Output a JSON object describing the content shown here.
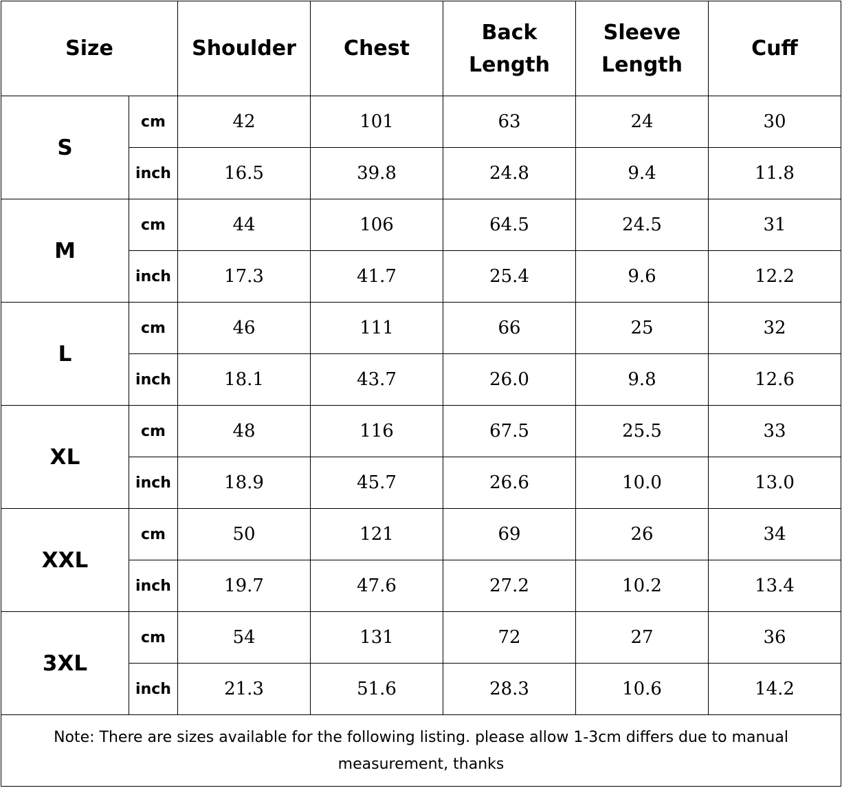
{
  "headers": {
    "size": "Size",
    "shoulder": "Shoulder",
    "chest": "Chest",
    "back_length_1": "Back",
    "back_length_2": "Length",
    "sleeve_length_1": "Sleeve",
    "sleeve_length_2": "Length",
    "cuff": "Cuff"
  },
  "rows": [
    {
      "size": "S",
      "cm_label": "cm",
      "inch_label": "inch",
      "cm": [
        "42",
        "101",
        "63",
        "24",
        "30"
      ],
      "inch": [
        "16.5",
        "39.8",
        "24.8",
        "9.4",
        "11.8"
      ]
    },
    {
      "size": "M",
      "cm_label": "cm",
      "inch_label": "inch",
      "cm": [
        "44",
        "106",
        "64.5",
        "24.5",
        "31"
      ],
      "inch": [
        "17.3",
        "41.7",
        "25.4",
        "9.6",
        "12.2"
      ]
    },
    {
      "size": "L",
      "cm_label": "cm",
      "inch_label": "inch",
      "cm": [
        "46",
        "111",
        "66",
        "25",
        "32"
      ],
      "inch": [
        "18.1",
        "43.7",
        "26.0",
        "9.8",
        "12.6"
      ]
    },
    {
      "size": "XL",
      "cm_label": "cm",
      "inch_label": "inch",
      "cm": [
        "48",
        "116",
        "67.5",
        "25.5",
        "33"
      ],
      "inch": [
        "18.9",
        "45.7",
        "26.6",
        "10.0",
        "13.0"
      ]
    },
    {
      "size": "XXL",
      "cm_label": "cm",
      "inch_label": "inch",
      "cm": [
        "50",
        "121",
        "69",
        "26",
        "34"
      ],
      "inch": [
        "19.7",
        "47.6",
        "27.2",
        "10.2",
        "13.4"
      ]
    },
    {
      "size": "3XL",
      "cm_label": "cm",
      "inch_label": "inch",
      "cm": [
        "54",
        "131",
        "72",
        "27",
        "36"
      ],
      "inch": [
        "21.3",
        "51.6",
        "28.3",
        "10.6",
        "14.2"
      ]
    }
  ],
  "note": "Note: There are sizes available for the following listing. please allow 1-3cm differs due to manual measurement, thanks"
}
